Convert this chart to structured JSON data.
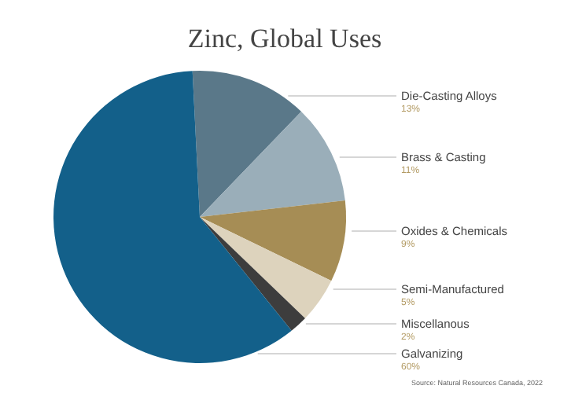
{
  "chart_data": {
    "type": "pie",
    "title": "Zinc, Global Uses",
    "categories": [
      "Die-Casting Alloys",
      "Brass & Casting",
      "Oxides & Chemicals",
      "Semi-Manufactured",
      "Miscellanous",
      "Galvanizing"
    ],
    "values": [
      13,
      11,
      9,
      5,
      2,
      60
    ],
    "colors": [
      "#5a7889",
      "#9aaeb9",
      "#a68d55",
      "#ddd3bd",
      "#3d3d3d",
      "#13608a"
    ],
    "value_labels": [
      "13%",
      "11%",
      "9%",
      "5%",
      "2%",
      "60%"
    ],
    "annotations": [
      "Source: Natural Resources Canada, 2022"
    ]
  }
}
